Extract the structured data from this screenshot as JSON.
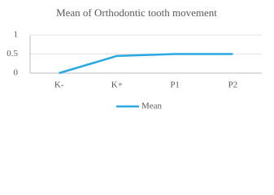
{
  "chart_data": {
    "type": "line",
    "title": "Mean of Orthodontic tooth movement",
    "categories": [
      "K-",
      "K+",
      "P1",
      "P2"
    ],
    "series": [
      {
        "name": "Mean",
        "color": "#29a9e1",
        "values": [
          0,
          0.45,
          0.5,
          0.5
        ]
      }
    ],
    "ylim": [
      0,
      1
    ],
    "yticks": [
      0,
      0.5,
      1
    ],
    "grid": true,
    "legend": "bottom"
  }
}
